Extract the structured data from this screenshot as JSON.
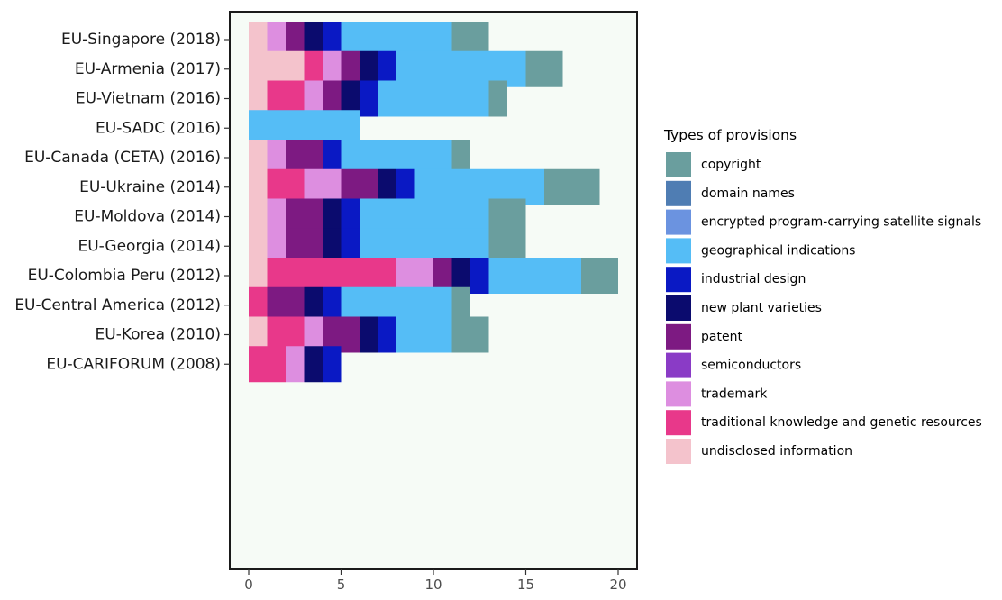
{
  "chart_data": {
    "type": "bar",
    "orientation": "horizontal",
    "stacked": true,
    "title": "",
    "xlabel": "",
    "ylabel": "",
    "xlim": [
      0,
      20.5
    ],
    "x_ticks": [
      "0",
      "5",
      "10",
      "15",
      "20"
    ],
    "grid": false,
    "background": "#f6fbf6",
    "legend_position": "right",
    "legend_title": "Types of provisions",
    "categories": [
      "EU-Singapore (2018)",
      "EU-Armenia (2017)",
      "EU-Vietnam (2016)",
      "EU-SADC (2016)",
      "EU-Canada (CETA) (2016)",
      "EU-Ukraine (2014)",
      "EU-Moldova (2014)",
      "EU-Georgia (2014)",
      "EU-Colombia Peru (2012)",
      "EU-Central America (2012)",
      "EU-Korea (2010)",
      "EU-CARIFORUM (2008)"
    ],
    "series": [
      {
        "name": "undisclosed information",
        "color": "#f4c3cc",
        "values": [
          1,
          3,
          1,
          0,
          1,
          1,
          1,
          1,
          1,
          0,
          1,
          0
        ]
      },
      {
        "name": "traditional knowledge and genetic resources",
        "color": "#e8388a",
        "values": [
          0,
          1,
          2,
          0,
          0,
          2,
          0,
          0,
          7,
          1,
          2,
          2
        ]
      },
      {
        "name": "trademark",
        "color": "#dd8ee0",
        "values": [
          1,
          1,
          1,
          0,
          1,
          2,
          1,
          1,
          2,
          0,
          1,
          1
        ]
      },
      {
        "name": "semiconductors",
        "color": "#8a3bc6",
        "values": [
          0,
          0,
          0,
          0,
          0,
          0,
          0,
          0,
          0,
          0,
          0,
          0
        ]
      },
      {
        "name": "patent",
        "color": "#7d1a82",
        "values": [
          1,
          1,
          1,
          0,
          2,
          2,
          2,
          2,
          1,
          2,
          2,
          0
        ]
      },
      {
        "name": "new plant varieties",
        "color": "#0b0b6e",
        "values": [
          1,
          1,
          1,
          0,
          0,
          1,
          1,
          1,
          1,
          1,
          1,
          1
        ]
      },
      {
        "name": "industrial design",
        "color": "#0a19c4",
        "values": [
          1,
          1,
          1,
          0,
          1,
          1,
          1,
          1,
          1,
          1,
          1,
          1
        ]
      },
      {
        "name": "geographical indications",
        "color": "#55bdf6",
        "values": [
          6,
          7,
          6,
          6,
          6,
          7,
          7,
          7,
          5,
          6,
          3,
          0
        ]
      },
      {
        "name": "encrypted program-carrying satellite signals",
        "color": "#6b93e0",
        "values": [
          0,
          0,
          0,
          0,
          0,
          0,
          0,
          0,
          0,
          0,
          0,
          0
        ]
      },
      {
        "name": "domain names",
        "color": "#4f7db3",
        "values": [
          0,
          0,
          0,
          0,
          0,
          0,
          0,
          0,
          0,
          0,
          0,
          0
        ]
      },
      {
        "name": "copyright",
        "color": "#6a9e9e",
        "values": [
          2,
          2,
          1,
          0,
          1,
          3,
          2,
          2,
          2,
          1,
          2,
          0
        ]
      }
    ],
    "legend_order": [
      "copyright",
      "domain names",
      "encrypted program-carrying satellite signals",
      "geographical indications",
      "industrial design",
      "new plant varieties",
      "patent",
      "semiconductors",
      "trademark",
      "traditional knowledge and genetic resources",
      "undisclosed information"
    ]
  }
}
